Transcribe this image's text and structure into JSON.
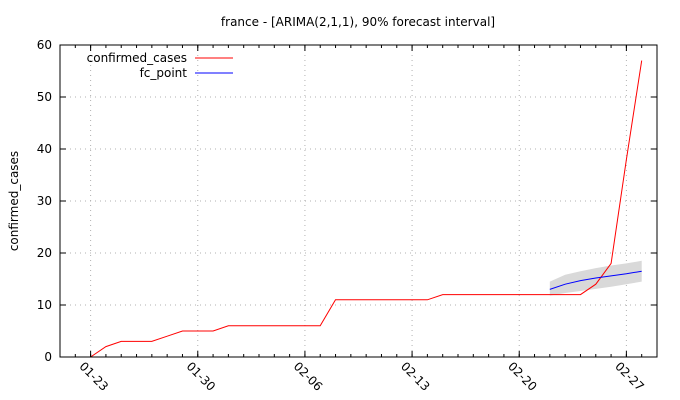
{
  "chart_data": {
    "type": "line",
    "title": "france -  [ARIMA(2,1,1), 90% forecast interval]",
    "xlabel": "",
    "ylabel": "confirmed_cases",
    "xlim": [
      "2020-01-21",
      "2020-02-29"
    ],
    "ylim": [
      0,
      60
    ],
    "yticks": [
      0,
      10,
      20,
      30,
      40,
      50,
      60
    ],
    "xticks": [
      {
        "date": "2020-01-23",
        "label": "01-23"
      },
      {
        "date": "2020-01-30",
        "label": "01-30"
      },
      {
        "date": "2020-02-06",
        "label": "02-06"
      },
      {
        "date": "2020-02-13",
        "label": "02-13"
      },
      {
        "date": "2020-02-20",
        "label": "02-20"
      },
      {
        "date": "2020-02-27",
        "label": "02-27"
      }
    ],
    "grid": true,
    "legend_position": "top-left",
    "series": [
      {
        "name": "confirmed_cases",
        "color": "#ff0000",
        "points": [
          [
            "2020-01-23",
            0
          ],
          [
            "2020-01-24",
            2
          ],
          [
            "2020-01-25",
            3
          ],
          [
            "2020-01-26",
            3
          ],
          [
            "2020-01-27",
            3
          ],
          [
            "2020-01-28",
            4
          ],
          [
            "2020-01-29",
            5
          ],
          [
            "2020-01-30",
            5
          ],
          [
            "2020-01-31",
            5
          ],
          [
            "2020-02-01",
            6
          ],
          [
            "2020-02-02",
            6
          ],
          [
            "2020-02-03",
            6
          ],
          [
            "2020-02-04",
            6
          ],
          [
            "2020-02-05",
            6
          ],
          [
            "2020-02-06",
            6
          ],
          [
            "2020-02-07",
            6
          ],
          [
            "2020-02-08",
            11
          ],
          [
            "2020-02-09",
            11
          ],
          [
            "2020-02-10",
            11
          ],
          [
            "2020-02-11",
            11
          ],
          [
            "2020-02-12",
            11
          ],
          [
            "2020-02-13",
            11
          ],
          [
            "2020-02-14",
            11
          ],
          [
            "2020-02-15",
            12
          ],
          [
            "2020-02-16",
            12
          ],
          [
            "2020-02-17",
            12
          ],
          [
            "2020-02-18",
            12
          ],
          [
            "2020-02-19",
            12
          ],
          [
            "2020-02-20",
            12
          ],
          [
            "2020-02-21",
            12
          ],
          [
            "2020-02-22",
            12
          ],
          [
            "2020-02-23",
            12
          ],
          [
            "2020-02-24",
            12
          ],
          [
            "2020-02-25",
            14
          ],
          [
            "2020-02-26",
            18
          ],
          [
            "2020-02-27",
            38
          ],
          [
            "2020-02-28",
            57
          ]
        ]
      },
      {
        "name": "fc_point",
        "color": "#0000ff",
        "points": [
          [
            "2020-02-22",
            13.0
          ],
          [
            "2020-02-23",
            14.0
          ],
          [
            "2020-02-24",
            14.7
          ],
          [
            "2020-02-25",
            15.2
          ],
          [
            "2020-02-26",
            15.6
          ],
          [
            "2020-02-27",
            16.0
          ],
          [
            "2020-02-28",
            16.5
          ]
        ]
      }
    ],
    "interval": {
      "color": "#d9d9d9",
      "points": [
        [
          "2020-02-22",
          11.8,
          14.5
        ],
        [
          "2020-02-23",
          12.3,
          15.8
        ],
        [
          "2020-02-24",
          12.7,
          16.5
        ],
        [
          "2020-02-25",
          13.1,
          17.1
        ],
        [
          "2020-02-26",
          13.5,
          17.6
        ],
        [
          "2020-02-27",
          14.0,
          18.0
        ],
        [
          "2020-02-28",
          14.5,
          18.5
        ]
      ]
    }
  }
}
